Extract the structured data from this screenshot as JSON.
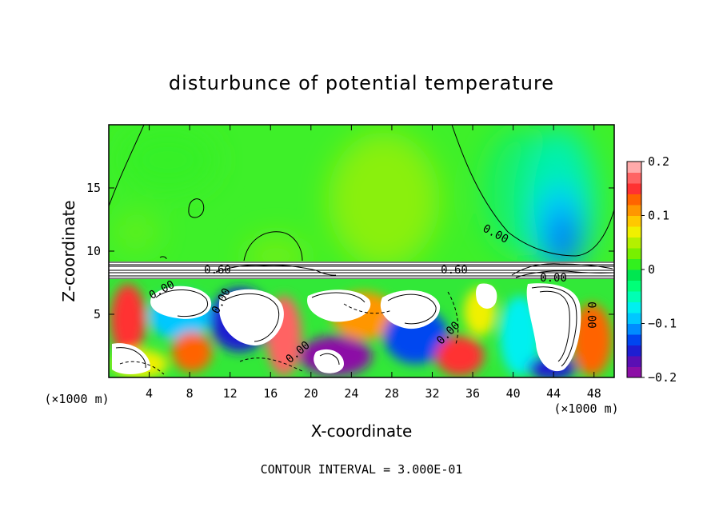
{
  "chart_data": {
    "type": "heatmap",
    "title": "disturbunce of potential temperature",
    "xlabel": "X-coordinate",
    "ylabel": "Z-coordinate",
    "x_unit": "(×1000 m)",
    "x_unit_right": "(×1000 m)",
    "xlim": [
      0,
      50
    ],
    "ylim": [
      0,
      20
    ],
    "x_ticks": [
      4,
      8,
      12,
      16,
      20,
      24,
      28,
      32,
      36,
      40,
      44,
      48
    ],
    "x_tick_labels": [
      "4",
      "8",
      "12",
      "16",
      "20",
      "24",
      "28",
      "32",
      "36",
      "40",
      "44",
      "48"
    ],
    "y_ticks": [
      5,
      10,
      15
    ],
    "y_tick_labels": [
      "5",
      "10",
      "15"
    ],
    "colorbar": {
      "min": -0.2,
      "max": 0.2,
      "tick_values": [
        0.2,
        0.1,
        0,
        -0.1,
        -0.2
      ],
      "tick_labels": [
        "0.2",
        "0.1",
        "0",
        "−0.1",
        "−0.2"
      ],
      "colors": [
        "#8c0fa6",
        "#5a0fb4",
        "#1e1ed2",
        "#0046f0",
        "#008cff",
        "#00c8ff",
        "#00f0f0",
        "#00ffb4",
        "#00ff78",
        "#00e650",
        "#32f01e",
        "#78f000",
        "#b4f000",
        "#f0f000",
        "#ffc800",
        "#ff9600",
        "#ff6400",
        "#ff3232",
        "#ff6464",
        "#ffaaaa"
      ]
    },
    "contour_labels": [
      "0.60",
      "0.60",
      "0.00",
      "0.00",
      "0.00",
      "0.00",
      "0.00",
      "0.00",
      "0.00"
    ],
    "footer": "CONTOUR INTERVAL = 3.000E-01",
    "grid": false
  }
}
